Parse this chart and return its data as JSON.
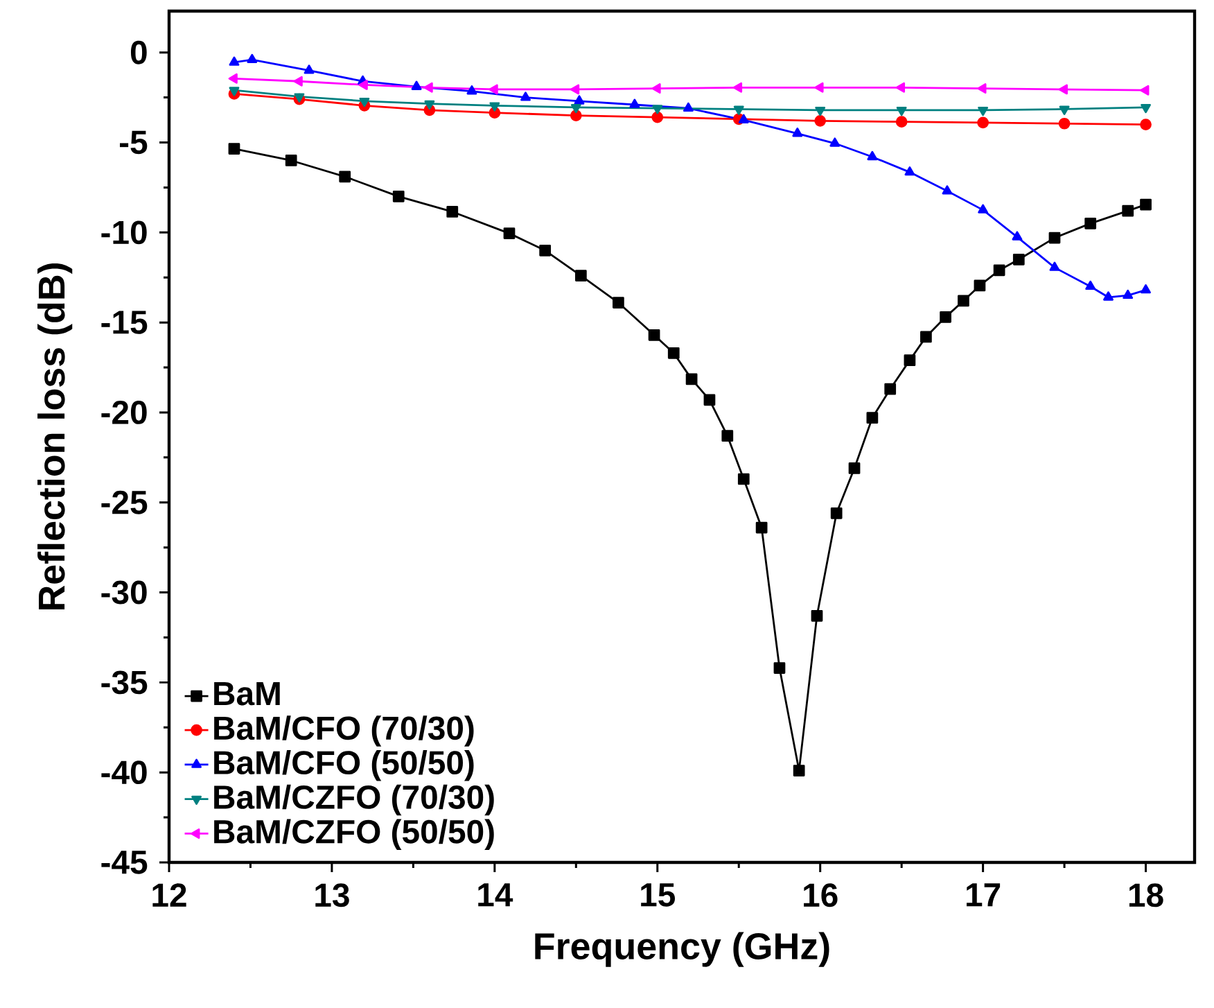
{
  "chart_data": {
    "type": "line",
    "xlabel": "Frequency (GHz)",
    "ylabel": "Reflection loss (dB)",
    "xlim": [
      12,
      18.3
    ],
    "ylim": [
      -45,
      2.3
    ],
    "xticks": [
      12,
      13,
      14,
      15,
      16,
      17,
      18
    ],
    "yticks": [
      0,
      -5,
      -10,
      -15,
      -20,
      -25,
      -30,
      -35,
      -40,
      -45
    ],
    "legend": "bottom left",
    "line_style": "solid",
    "series": [
      {
        "name": "BaM",
        "color": "#000000",
        "marker": "square",
        "x": [
          12.4,
          12.75,
          13.08,
          13.41,
          13.74,
          14.09,
          14.31,
          14.53,
          14.76,
          14.98,
          15.1,
          15.21,
          15.32,
          15.43,
          15.53,
          15.64,
          15.75,
          15.87,
          15.98,
          16.1,
          16.21,
          16.32,
          16.43,
          16.55,
          16.65,
          16.77,
          16.88,
          16.98,
          17.1,
          17.22,
          17.44,
          17.66,
          17.89,
          18.0
        ],
        "values": [
          -5.35,
          -6.0,
          -6.9,
          -8.0,
          -8.85,
          -10.05,
          -11.0,
          -12.4,
          -13.9,
          -15.7,
          -16.7,
          -18.15,
          -19.3,
          -21.3,
          -23.7,
          -26.4,
          -34.2,
          -39.9,
          -31.3,
          -25.6,
          -23.1,
          -20.3,
          -18.7,
          -17.1,
          -15.8,
          -14.7,
          -13.8,
          -12.95,
          -12.1,
          -11.5,
          -10.3,
          -9.5,
          -8.8,
          -8.45
        ]
      },
      {
        "name": "BaM/CFO (70/30)",
        "color": "#ff0000",
        "marker": "circle",
        "x": [
          12.4,
          12.8,
          13.2,
          13.6,
          14.0,
          14.5,
          15.0,
          15.5,
          16.0,
          16.5,
          17.0,
          17.5,
          18.0
        ],
        "values": [
          -2.3,
          -2.6,
          -2.95,
          -3.2,
          -3.35,
          -3.5,
          -3.6,
          -3.7,
          -3.8,
          -3.85,
          -3.9,
          -3.95,
          -4.0
        ]
      },
      {
        "name": "BaM/CFO (50/50)",
        "color": "#0000ff",
        "marker": "triangle",
        "x": [
          12.4,
          12.51,
          12.86,
          13.19,
          13.52,
          13.86,
          14.19,
          14.52,
          14.86,
          15.19,
          15.53,
          15.86,
          16.09,
          16.32,
          16.55,
          16.78,
          17.0,
          17.21,
          17.44,
          17.66,
          17.77,
          17.89,
          18.0
        ],
        "values": [
          -0.55,
          -0.4,
          -1.0,
          -1.6,
          -1.9,
          -2.15,
          -2.5,
          -2.7,
          -2.9,
          -3.1,
          -3.75,
          -4.5,
          -5.05,
          -5.8,
          -6.65,
          -7.7,
          -8.75,
          -10.25,
          -11.95,
          -13.0,
          -13.6,
          -13.5,
          -13.2
        ]
      },
      {
        "name": "BaM/CZFO (70/30)",
        "color": "#008080",
        "marker": "triangle-down",
        "x": [
          12.4,
          12.8,
          13.2,
          13.6,
          14.0,
          14.5,
          15.0,
          15.5,
          16.0,
          16.5,
          17.0,
          17.5,
          18.0
        ],
        "values": [
          -2.1,
          -2.45,
          -2.7,
          -2.85,
          -2.95,
          -3.05,
          -3.1,
          -3.15,
          -3.2,
          -3.2,
          -3.2,
          -3.15,
          -3.05
        ]
      },
      {
        "name": "BaM/CZFO (50/50)",
        "color": "#ff00ff",
        "marker": "triangle-left",
        "x": [
          12.4,
          12.8,
          13.2,
          13.6,
          14.0,
          14.5,
          15.0,
          15.5,
          16.0,
          16.5,
          17.0,
          17.5,
          18.0
        ],
        "values": [
          -1.45,
          -1.6,
          -1.8,
          -1.95,
          -2.05,
          -2.05,
          -2.0,
          -1.95,
          -1.95,
          -1.95,
          -2.0,
          -2.05,
          -2.1
        ]
      }
    ]
  }
}
